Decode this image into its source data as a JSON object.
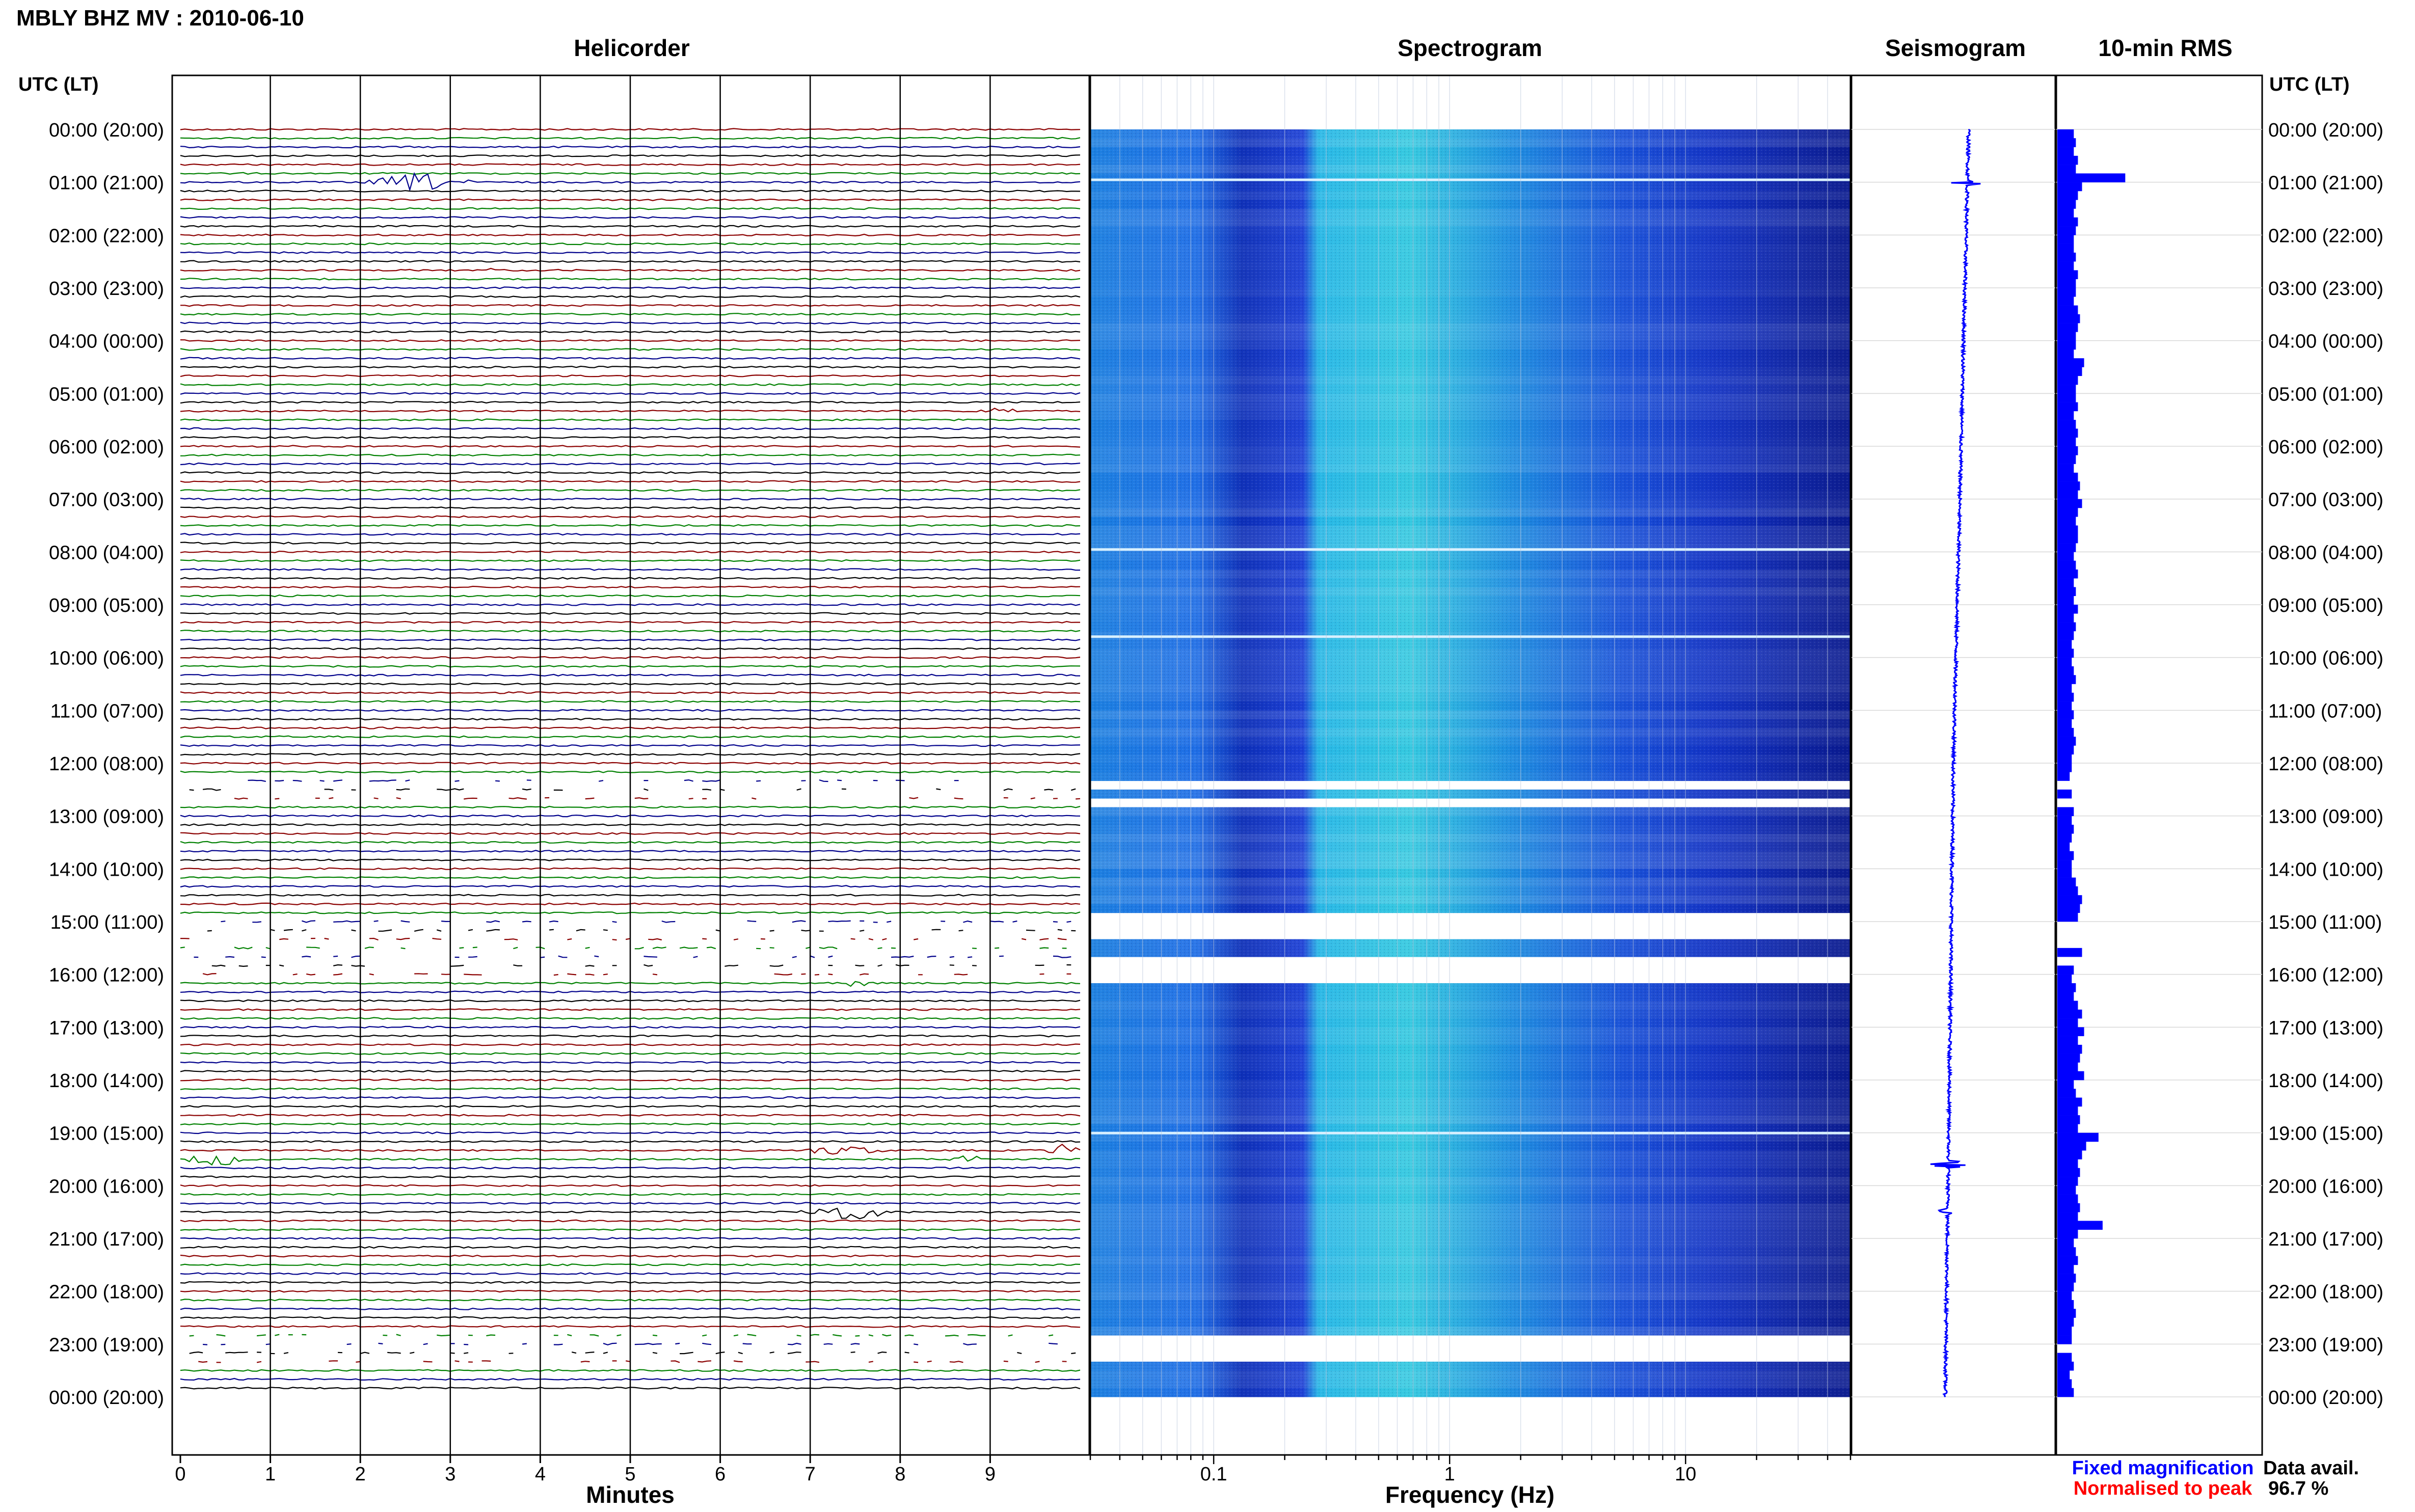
{
  "page": {
    "station_title": "MBLY BHZ MV : 2010-06-10",
    "time_axis_label": "UTC (LT)"
  },
  "panels": {
    "helicorder": "Helicorder",
    "spectrogram": "Spectrogram",
    "seismogram": "Seismogram",
    "rms": "10-min RMS"
  },
  "legend": {
    "fixed_magnification": "Fixed magnification",
    "normalised_to_peak": "Normalised to peak",
    "fixed_color": "#0000ff",
    "normalised_color": "#ff0000"
  },
  "data_availability": {
    "label": "Data avail.",
    "value": "96.7 %"
  },
  "time_ticks": [
    "00:00 (20:00)",
    "01:00 (21:00)",
    "02:00 (22:00)",
    "03:00 (23:00)",
    "04:00 (00:00)",
    "05:00 (01:00)",
    "06:00 (02:00)",
    "07:00 (03:00)",
    "08:00 (04:00)",
    "09:00 (05:00)",
    "10:00 (06:00)",
    "11:00 (07:00)",
    "12:00 (08:00)",
    "13:00 (09:00)",
    "14:00 (10:00)",
    "15:00 (11:00)",
    "16:00 (12:00)",
    "17:00 (13:00)",
    "18:00 (14:00)",
    "19:00 (15:00)",
    "20:00 (16:00)",
    "21:00 (17:00)",
    "22:00 (18:00)",
    "23:00 (19:00)",
    "00:00 (20:00)"
  ],
  "colors": {
    "trace_cycle": [
      "#8b0000",
      "#008000",
      "#00008b",
      "#000000"
    ],
    "spectrogram_low": "#0a1e9c",
    "spectrogram_high": "#34e6e0",
    "rms_bar": "#0000ff",
    "seismogram": "#0000ff"
  },
  "chart_data": [
    {
      "type": "line",
      "panel": "Helicorder",
      "xlabel": "Minutes",
      "x_ticks": [
        "0",
        "1",
        "2",
        "3",
        "4",
        "5",
        "6",
        "7",
        "8",
        "9"
      ],
      "xlim": [
        0,
        10
      ],
      "ylim_hours": [
        0,
        24
      ],
      "trace_interval_minutes": 10,
      "traces_per_hour": 6,
      "events": [
        {
          "hour": 0.95,
          "minute_start": 2.0,
          "minute_end": 3.3,
          "amplitude": 0.6
        },
        {
          "hour": 2.6,
          "minute_start": 3.4,
          "minute_end": 3.6,
          "amplitude": 0.15
        },
        {
          "hour": 5.3,
          "minute_start": 8.8,
          "minute_end": 9.4,
          "amplitude": 0.2
        },
        {
          "hour": 16.1,
          "minute_start": 7.3,
          "minute_end": 7.8,
          "amplitude": 0.25
        },
        {
          "hour": 19.3,
          "minute_start": 6.8,
          "minute_end": 7.9,
          "amplitude": 0.3
        },
        {
          "hour": 19.3,
          "minute_start": 9.6,
          "minute_end": 10.0,
          "amplitude": 0.5
        },
        {
          "hour": 19.5,
          "minute_start": 0.0,
          "minute_end": 0.8,
          "amplitude": 0.45
        },
        {
          "hour": 19.5,
          "minute_start": 8.5,
          "minute_end": 9.0,
          "amplitude": 0.3
        },
        {
          "hour": 20.5,
          "minute_start": 6.8,
          "minute_end": 8.0,
          "amplitude": 0.55
        }
      ],
      "gaps_hours": [
        [
          12.3,
          12.8
        ],
        [
          14.9,
          16.1
        ],
        [
          22.8,
          23.4
        ]
      ]
    },
    {
      "type": "heatmap",
      "panel": "Spectrogram",
      "xlabel": "Frequency (Hz)",
      "x_scale": "log",
      "x_ticks": [
        "0.1",
        "1",
        "10"
      ],
      "xlim": [
        0.03,
        50
      ],
      "ylim_hours": [
        0,
        24
      ],
      "gaps_hours": [
        [
          12.3,
          12.5
        ],
        [
          12.65,
          12.75
        ],
        [
          14.9,
          15.35
        ],
        [
          15.6,
          16.1
        ],
        [
          22.8,
          23.1
        ],
        [
          23.2,
          23.4
        ]
      ],
      "bright_lines_hours": [
        0.95,
        7.95,
        9.6,
        19.0
      ]
    },
    {
      "type": "line",
      "panel": "Seismogram",
      "ylim_hours": [
        0,
        24
      ],
      "drift_start": 0.15,
      "drift_mid": 0.0,
      "drift_end": -0.08,
      "spikes": [
        {
          "hour": 1.0,
          "amplitude": 0.6
        },
        {
          "hour": 19.6,
          "amplitude": 0.7
        },
        {
          "hour": 20.5,
          "amplitude": 0.3
        }
      ]
    },
    {
      "type": "bar",
      "panel": "10-min RMS",
      "orientation": "horizontal",
      "ylim_hours": [
        0,
        24
      ],
      "xlim": [
        0,
        1
      ],
      "bin_minutes": 10,
      "values": [
        0.08,
        0.09,
        0.08,
        0.1,
        0.09,
        0.33,
        0.12,
        0.1,
        0.09,
        0.08,
        0.1,
        0.09,
        0.08,
        0.08,
        0.09,
        0.08,
        0.1,
        0.09,
        0.09,
        0.08,
        0.1,
        0.11,
        0.1,
        0.09,
        0.09,
        0.08,
        0.13,
        0.12,
        0.1,
        0.09,
        0.09,
        0.1,
        0.08,
        0.09,
        0.1,
        0.09,
        0.1,
        0.09,
        0.08,
        0.1,
        0.11,
        0.1,
        0.12,
        0.1,
        0.09,
        0.1,
        0.1,
        0.09,
        0.08,
        0.09,
        0.1,
        0.08,
        0.09,
        0.08,
        0.1,
        0.08,
        0.09,
        0.08,
        0.07,
        0.08,
        0.07,
        0.08,
        0.09,
        0.07,
        0.08,
        0.07,
        0.08,
        0.07,
        0.08,
        0.09,
        0.08,
        0.07,
        0.07,
        0.06,
        0.0,
        0.07,
        0.0,
        0.08,
        0.07,
        0.08,
        0.07,
        0.06,
        0.08,
        0.07,
        0.07,
        0.09,
        0.1,
        0.12,
        0.11,
        0.1,
        0.0,
        0.0,
        0.0,
        0.12,
        0.0,
        0.08,
        0.07,
        0.09,
        0.08,
        0.1,
        0.12,
        0.1,
        0.13,
        0.1,
        0.12,
        0.11,
        0.1,
        0.13,
        0.08,
        0.09,
        0.12,
        0.1,
        0.11,
        0.1,
        0.2,
        0.14,
        0.12,
        0.1,
        0.11,
        0.1,
        0.09,
        0.1,
        0.11,
        0.1,
        0.22,
        0.1,
        0.08,
        0.09,
        0.1,
        0.08,
        0.09,
        0.08,
        0.07,
        0.08,
        0.09,
        0.08,
        0.07,
        0.07,
        0.0,
        0.07,
        0.08,
        0.06,
        0.07,
        0.08
      ]
    }
  ]
}
